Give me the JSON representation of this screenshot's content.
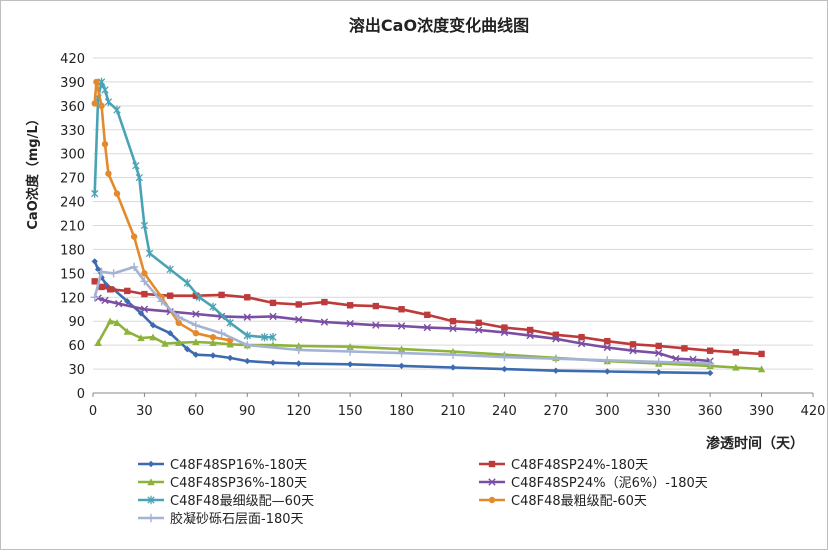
{
  "chart_data": {
    "type": "line",
    "title": "溶出CaO浓度变化曲线图",
    "xlabel": "渗透时间（天）",
    "ylabel": "CaO浓度（mg/L）",
    "xlim": [
      0,
      420
    ],
    "ylim": [
      0,
      420
    ],
    "xticks": [
      0,
      30,
      60,
      90,
      120,
      150,
      180,
      210,
      240,
      270,
      300,
      330,
      360,
      390,
      420
    ],
    "yticks": [
      0,
      30,
      60,
      90,
      120,
      150,
      180,
      210,
      240,
      270,
      300,
      330,
      360,
      390,
      420
    ],
    "grid": "horizontal",
    "legend_position": "bottom",
    "series": [
      {
        "name": "C48F48SP16%-180天",
        "color": "#3d6bb0",
        "marker": "diamond",
        "x": [
          1,
          3,
          5,
          8,
          12,
          20,
          28,
          35,
          45,
          55,
          60,
          70,
          80,
          90,
          105,
          120,
          150,
          180,
          210,
          240,
          270,
          300,
          330,
          360
        ],
        "y": [
          165,
          155,
          145,
          135,
          130,
          115,
          100,
          85,
          75,
          55,
          48,
          47,
          44,
          40,
          38,
          37,
          36,
          34,
          32,
          30,
          28,
          27,
          26,
          25
        ]
      },
      {
        "name": "C48F48SP24%-180天",
        "color": "#be3b3b",
        "marker": "square",
        "x": [
          1,
          5,
          10,
          20,
          30,
          45,
          60,
          75,
          90,
          105,
          120,
          135,
          150,
          165,
          180,
          195,
          210,
          225,
          240,
          255,
          270,
          285,
          300,
          315,
          330,
          345,
          360,
          375,
          390
        ],
        "y": [
          140,
          133,
          130,
          128,
          124,
          122,
          122,
          123,
          120,
          113,
          111,
          114,
          110,
          109,
          105,
          98,
          90,
          88,
          82,
          79,
          73,
          70,
          65,
          61,
          59,
          56,
          53,
          51,
          49
        ]
      },
      {
        "name": "C48F48SP36%-180天",
        "color": "#8db33c",
        "marker": "triangle",
        "x": [
          3,
          10,
          14,
          20,
          28,
          35,
          42,
          50,
          60,
          70,
          80,
          90,
          105,
          120,
          150,
          180,
          210,
          240,
          270,
          300,
          330,
          360,
          375,
          390
        ],
        "y": [
          63,
          90,
          88,
          77,
          69,
          70,
          62,
          63,
          64,
          63,
          61,
          60,
          60,
          59,
          58,
          55,
          52,
          48,
          44,
          40,
          37,
          34,
          32,
          30
        ]
      },
      {
        "name": "C48F48SP24%（泥6%）-180天",
        "color": "#7b4ea3",
        "marker": "x",
        "x": [
          3,
          7,
          15,
          30,
          45,
          60,
          75,
          90,
          105,
          120,
          135,
          150,
          165,
          180,
          195,
          210,
          225,
          240,
          255,
          270,
          285,
          300,
          315,
          330,
          340,
          350,
          360
        ],
        "y": [
          119,
          116,
          112,
          105,
          102,
          99,
          96,
          95,
          96,
          92,
          89,
          87,
          85,
          84,
          82,
          81,
          79,
          76,
          72,
          68,
          62,
          57,
          53,
          50,
          43,
          42,
          40
        ]
      },
      {
        "name": "C48F48最细级配—60天",
        "color": "#4aa3b5",
        "marker": "star",
        "x": [
          1,
          3,
          5,
          7,
          9,
          14,
          25,
          27,
          30,
          33,
          45,
          55,
          62,
          70,
          80,
          90,
          100,
          105
        ],
        "y": [
          250,
          370,
          390,
          380,
          365,
          355,
          285,
          270,
          210,
          175,
          155,
          138,
          120,
          108,
          88,
          72,
          70,
          70
        ]
      },
      {
        "name": "C48F48最粗级配-60天",
        "color": "#e48a2c",
        "marker": "circle",
        "x": [
          1,
          2,
          5,
          7,
          9,
          14,
          24,
          30,
          40,
          50,
          60,
          70,
          80
        ],
        "y": [
          363,
          390,
          360,
          312,
          275,
          250,
          196,
          150,
          120,
          88,
          75,
          70,
          66
        ]
      },
      {
        "name": "胶凝砂砾石层面-180天",
        "color": "#a4b3d4",
        "marker": "plus",
        "x": [
          1,
          5,
          12,
          24,
          30,
          40,
          50,
          60,
          75,
          90,
          120,
          150,
          180,
          210,
          240,
          270,
          300,
          330,
          360
        ],
        "y": [
          120,
          152,
          150,
          158,
          140,
          115,
          95,
          85,
          75,
          60,
          54,
          52,
          50,
          48,
          45,
          43,
          41,
          39,
          37
        ]
      }
    ]
  }
}
